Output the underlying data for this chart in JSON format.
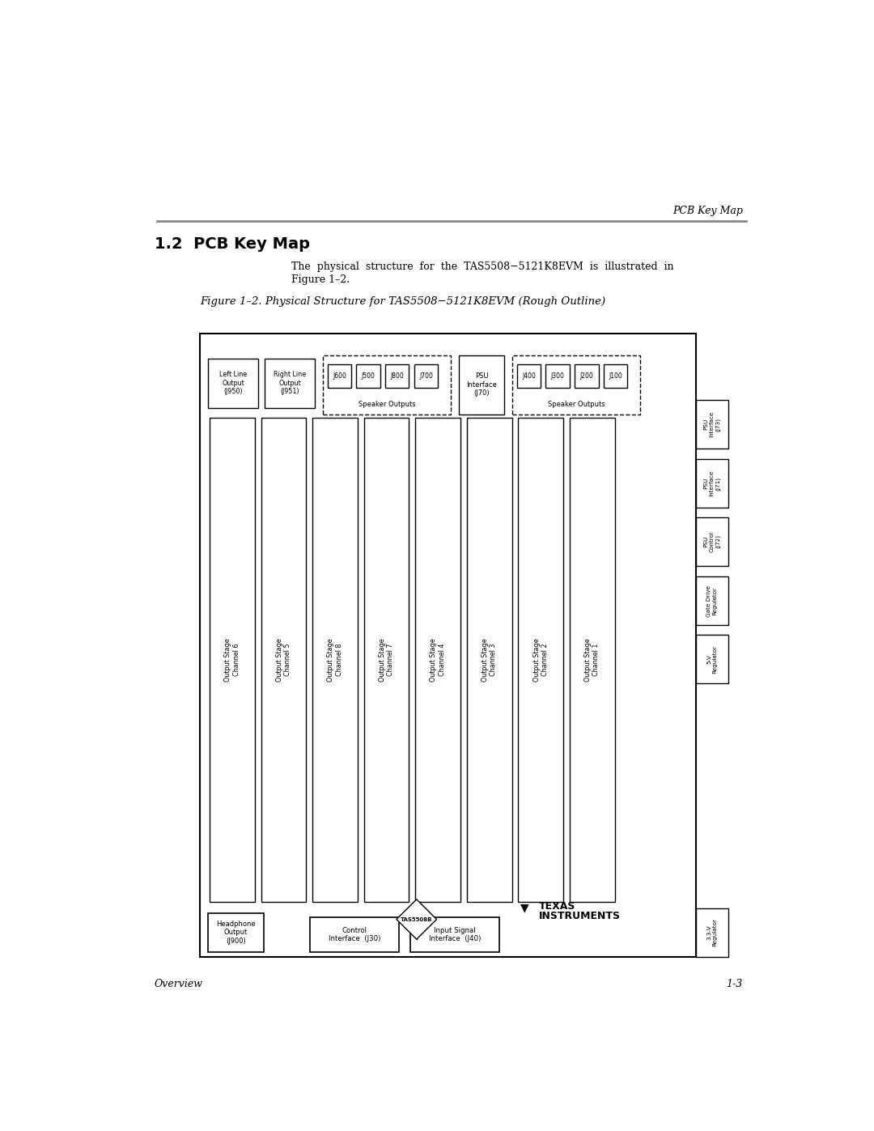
{
  "page_header": "PCB Key Map",
  "section_title": "1.2  PCB Key Map",
  "body_text_line1": "The  physical  structure  for  the  TAS5508−5121K8EVM  is  illustrated  in",
  "body_text_line2": "Figure 1–2.",
  "figure_caption": "Figure 1–2. Physical Structure for TAS5508−5121K8EVM (Rough Outline)",
  "footer_left": "Overview",
  "footer_right": "1-3",
  "bg_color": "#ffffff",
  "output_channels": [
    "Output Stage\nChannel 6",
    "Output Stage\nChannel 5",
    "Output Stage\nChannel 8",
    "Output Stage\nChannel 7",
    "Output Stage\nChannel 4",
    "Output Stage\nChannel 3",
    "Output Stage\nChannel 2",
    "Output Stage\nChannel 1"
  ],
  "speaker_outputs_left": [
    "J600",
    "J500",
    "J800",
    "J700"
  ],
  "speaker_outputs_right": [
    "J400",
    "J300",
    "J200",
    "J100"
  ],
  "psu_interface_label": "PSU\nInterface\n(J70)",
  "left_line_output": "Left Line\nOutput\n(J950)",
  "right_line_output": "Right Line\nOutput\n(J951)",
  "headphone_output": "Headphone\nOutput\n(J900)",
  "control_interface": "Control\nInterface  (J30)",
  "input_signal": "Input Signal\nInterface  (J40)",
  "tas_chip": "TAS5508B",
  "right_boxes": [
    {
      "label": "PSU\nInterface\n(J73)",
      "rot": 90
    },
    {
      "label": "PSU\nInterface\n(J71)",
      "rot": 90
    },
    {
      "label": "PSU\nControl\n(J72)",
      "rot": 90
    },
    {
      "label": "Gate Drive\nRegulator",
      "rot": 90
    },
    {
      "label": "5-V\nRegulator",
      "rot": 90
    },
    {
      "label": "3.3-V\nRegulator",
      "rot": 90
    }
  ]
}
